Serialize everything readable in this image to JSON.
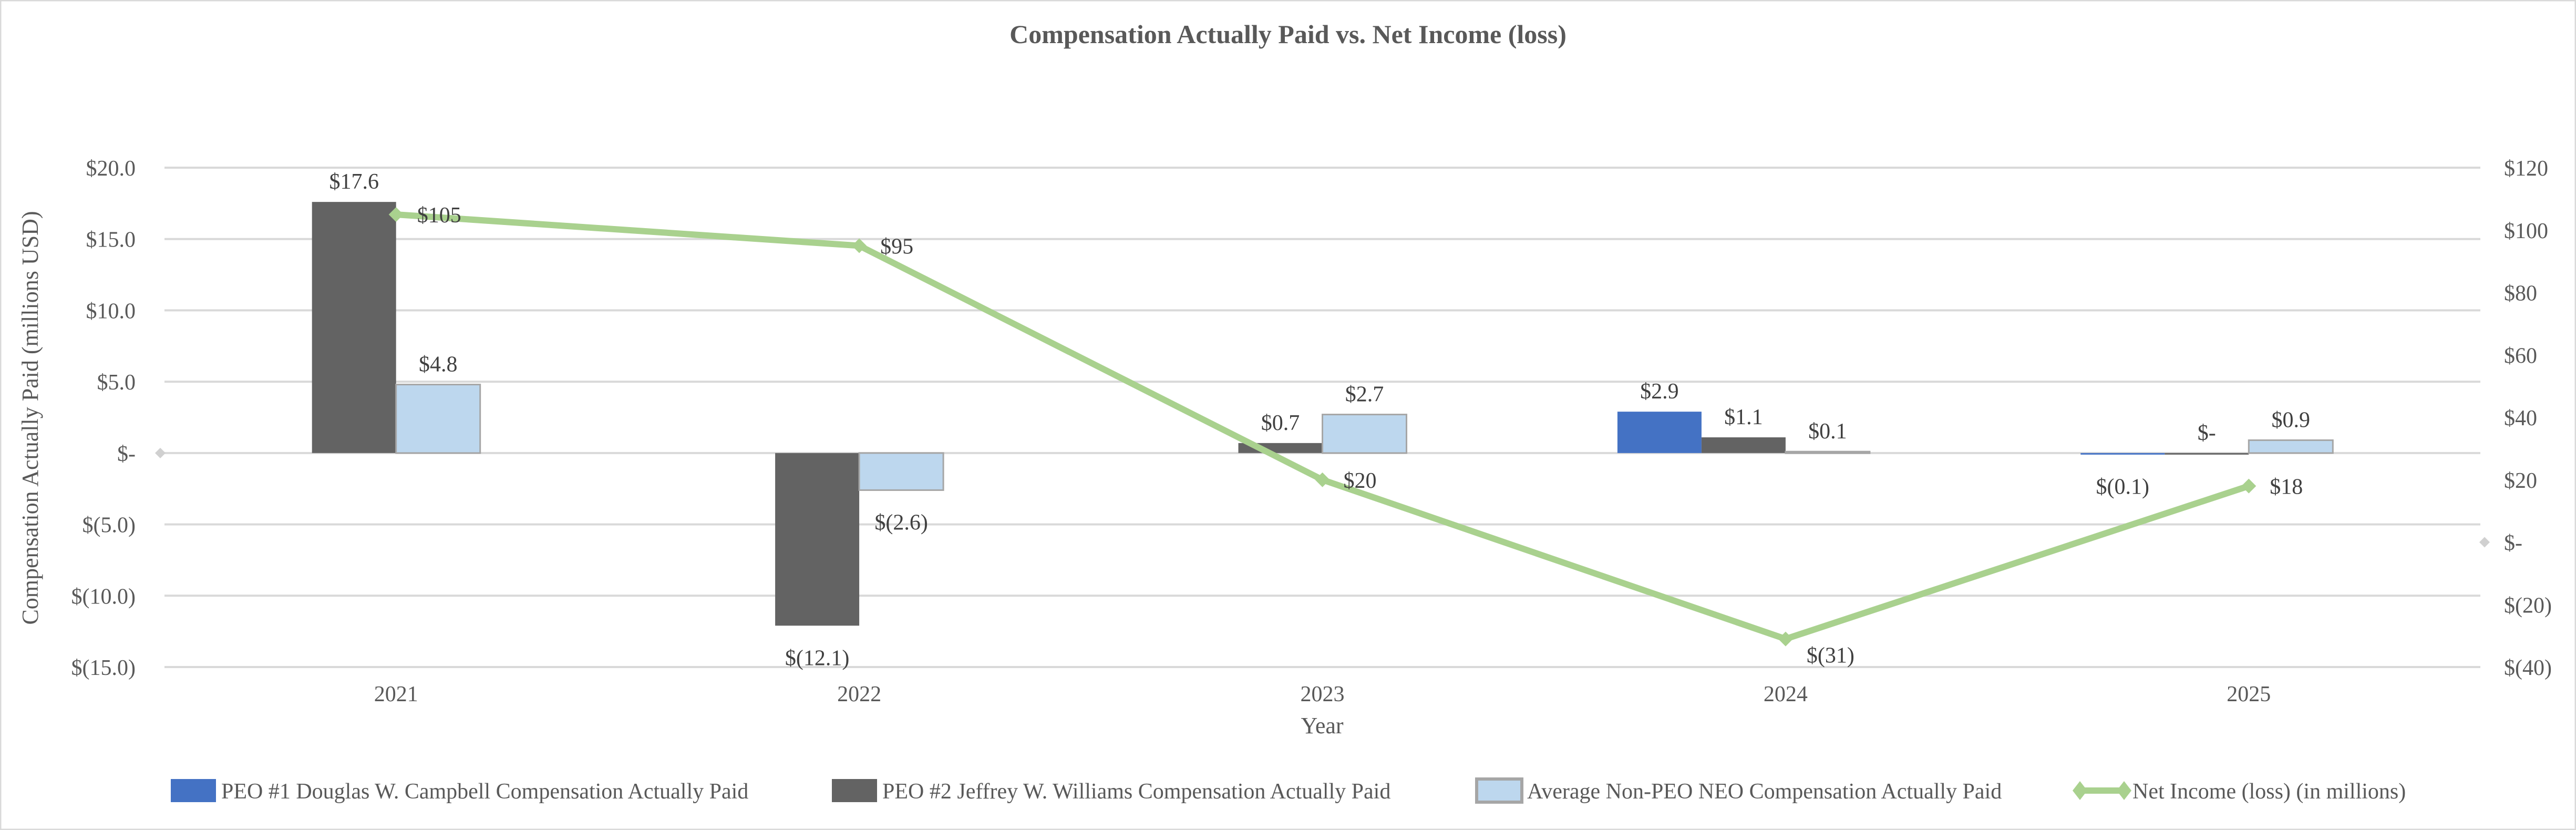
{
  "chart_data": {
    "type": "bar+line",
    "title": "Compensation Actually Paid vs. Net Income (loss)",
    "xlabel": "Year",
    "ylabel": "Compensation Actually Paid (millions USD)",
    "categories": [
      "2021",
      "2022",
      "2023",
      "2024",
      "2025"
    ],
    "y_left": {
      "range": [
        -15,
        20
      ],
      "ticks": [
        20,
        15,
        10,
        5,
        0,
        -5,
        -10,
        -15
      ],
      "tick_labels": [
        "$20.0",
        "$15.0",
        "$10.0",
        "$5.0",
        "$-",
        "$(5.0)",
        "$(10.0)",
        "$(15.0)"
      ]
    },
    "y_right": {
      "range": [
        -40,
        120
      ],
      "ticks": [
        120,
        100,
        80,
        60,
        40,
        20,
        0,
        -20,
        -40
      ],
      "tick_labels": [
        "$120",
        "$100",
        "$80",
        "$60",
        "$40",
        "$20",
        "$-",
        "$(20)",
        "$(40)"
      ]
    },
    "grid": true,
    "legend_position": "bottom",
    "series": [
      {
        "name": "PEO #1 Douglas W. Campbell Compensation Actually Paid",
        "type": "bar",
        "axis": "left",
        "color": "#4472C4",
        "values": [
          null,
          null,
          null,
          2.9,
          -0.1
        ],
        "labels": [
          "",
          "",
          "",
          "$2.9",
          "$(0.1)"
        ]
      },
      {
        "name": "PEO #2 Jeffrey W. Williams Compensation Actually Paid",
        "type": "bar",
        "axis": "left",
        "color": "#636363",
        "values": [
          17.6,
          -12.1,
          0.7,
          1.1,
          0
        ],
        "labels": [
          "$17.6",
          "$(12.1)",
          "$0.7",
          "$1.1",
          "$-"
        ]
      },
      {
        "name": "Average Non-PEO NEO Compensation Actually Paid",
        "type": "bar",
        "axis": "left",
        "color": "#BDD7EE",
        "values": [
          4.8,
          -2.6,
          2.7,
          0.1,
          0.9
        ],
        "labels": [
          "$4.8",
          "$(2.6)",
          "$2.7",
          "$0.1",
          "$0.9"
        ]
      },
      {
        "name": "Net Income (loss) (in millions)",
        "type": "line",
        "axis": "right",
        "color": "#A9D18E",
        "values": [
          105,
          95,
          20,
          -31,
          18
        ],
        "labels": [
          "$105",
          "$95",
          "$20",
          "$(31)",
          "$18"
        ]
      }
    ]
  }
}
